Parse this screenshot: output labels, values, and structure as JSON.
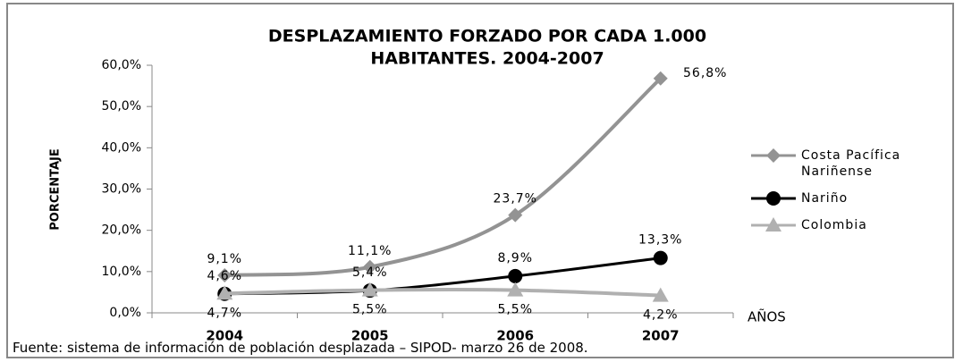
{
  "chart_data": {
    "type": "line",
    "title": [
      "DESPLAZAMIENTO FORZADO POR CADA 1.000",
      "HABITANTES. 2004-2007"
    ],
    "y_label": "PORCENTAJE",
    "x_label": "AÑOS",
    "source": "Fuente: sistema de información de población desplazada – SIPOD- marzo 26 de 2008.",
    "categories": [
      "2004",
      "2005",
      "2006",
      "2007"
    ],
    "ylim": [
      0,
      60
    ],
    "yticks": [
      {
        "value": 0,
        "label": "0,0%"
      },
      {
        "value": 10,
        "label": "10,0%"
      },
      {
        "value": 20,
        "label": "20,0%"
      },
      {
        "value": 30,
        "label": "30,0%"
      },
      {
        "value": 40,
        "label": "40,0%"
      },
      {
        "value": 50,
        "label": "50,0%"
      },
      {
        "value": 60,
        "label": "60,0%"
      }
    ],
    "legend": "right",
    "series": [
      {
        "name": "Costa Pacífica Nariñense",
        "color": "#939393",
        "marker": "diamond",
        "values": [
          9.1,
          11.1,
          23.7,
          56.8
        ],
        "value_labels": [
          "9,1%",
          "11,1%",
          "23,7%",
          "56,8%"
        ]
      },
      {
        "name": "Nariño",
        "color": "#000000",
        "marker": "circle",
        "values": [
          4.6,
          5.4,
          8.9,
          13.3
        ],
        "value_labels": [
          "4,6%",
          "5,4%",
          "8,9%",
          "13,3%"
        ]
      },
      {
        "name": "Colombia",
        "color": "#b0b0b0",
        "marker": "triangle",
        "values": [
          4.7,
          5.5,
          5.5,
          4.2
        ],
        "value_labels": [
          "4,7%",
          "5,5%",
          "5,5%",
          "4,2%"
        ]
      }
    ]
  }
}
